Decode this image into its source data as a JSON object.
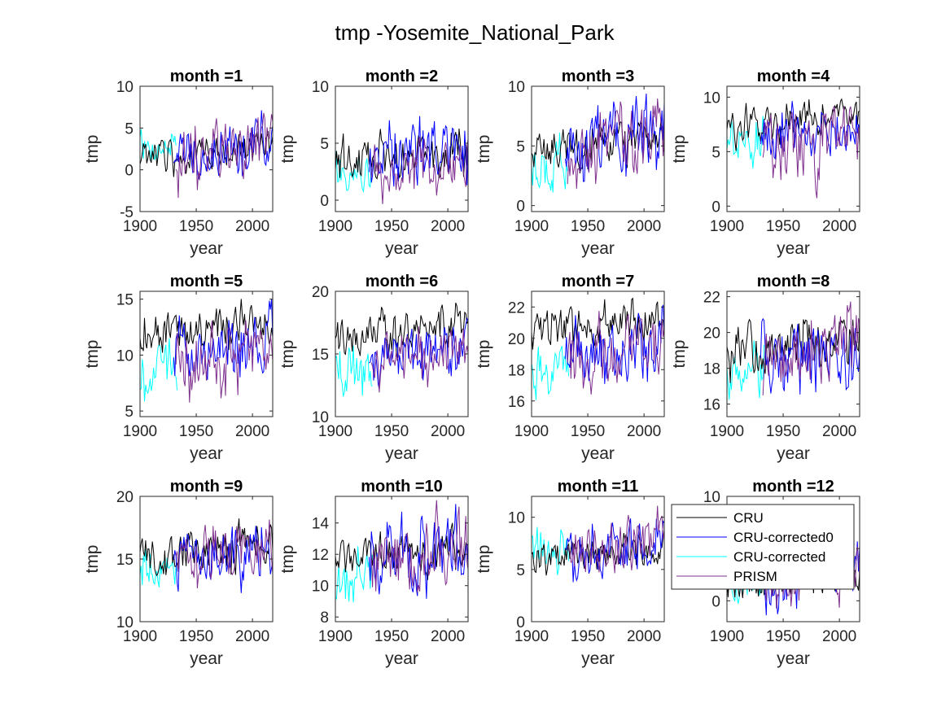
{
  "figure": {
    "title": "tmp -Yosemite_National_Park"
  },
  "legend": {
    "placement": "over subplot month =12, upper-left",
    "entries": [
      {
        "name": "CRU",
        "color": "#000000"
      },
      {
        "name": "CRU-corrected0",
        "color": "#0000ff"
      },
      {
        "name": "CRU-corrected",
        "color": "#00ffff"
      },
      {
        "name": "PRISM",
        "color": "#7e2f8e"
      }
    ]
  },
  "chart_data": [
    {
      "type": "line",
      "title": "month =1",
      "xlabel": "year",
      "ylabel": "tmp",
      "xlim": [
        1900,
        2018
      ],
      "ylim": [
        -5,
        10
      ],
      "xticks": [
        1900,
        1950,
        2000
      ],
      "yticks": [
        -5,
        0,
        5,
        10
      ],
      "approx_series_ranges": {
        "CRU": [
          -1.5,
          5.5
        ],
        "CRU-corrected0": [
          -3,
          8
        ],
        "CRU-corrected": [
          0,
          6
        ],
        "PRISM": [
          -4.5,
          8.5
        ]
      }
    },
    {
      "type": "line",
      "title": "month =2",
      "xlabel": "year",
      "ylabel": "tmp",
      "xlim": [
        1900,
        2018
      ],
      "ylim": [
        -1,
        10
      ],
      "xticks": [
        1900,
        1950,
        2000
      ],
      "yticks": [
        0,
        5,
        10
      ],
      "approx_series_ranges": {
        "CRU": [
          0.5,
          7
        ],
        "CRU-corrected0": [
          -1,
          8.5
        ],
        "CRU-corrected": [
          -0.5,
          6
        ],
        "PRISM": [
          -1,
          7
        ]
      }
    },
    {
      "type": "line",
      "title": "month =3",
      "xlabel": "year",
      "ylabel": "tmp",
      "xlim": [
        1900,
        2018
      ],
      "ylim": [
        -0.5,
        10
      ],
      "xticks": [
        1900,
        1950,
        2000
      ],
      "yticks": [
        0,
        5,
        10
      ],
      "approx_series_ranges": {
        "CRU": [
          2.5,
          8
        ],
        "CRU-corrected0": [
          0.5,
          9.5
        ],
        "CRU-corrected": [
          0,
          7.5
        ],
        "PRISM": [
          0.5,
          9.5
        ]
      }
    },
    {
      "type": "line",
      "title": "month =4",
      "xlabel": "year",
      "ylabel": "tmp",
      "xlim": [
        1900,
        2018
      ],
      "ylim": [
        -0.5,
        11
      ],
      "xticks": [
        1900,
        1950,
        2000
      ],
      "yticks": [
        0,
        5,
        10
      ],
      "approx_series_ranges": {
        "CRU": [
          5,
          10.5
        ],
        "CRU-corrected0": [
          2.5,
          10.5
        ],
        "CRU-corrected": [
          3,
          9.5
        ],
        "PRISM": [
          0,
          11
        ]
      }
    },
    {
      "type": "line",
      "title": "month =5",
      "xlabel": "year",
      "ylabel": "tmp",
      "xlim": [
        1900,
        2018
      ],
      "ylim": [
        4.5,
        15.7
      ],
      "xticks": [
        1900,
        1950,
        2000
      ],
      "yticks": [
        5,
        10,
        15
      ],
      "approx_series_ranges": {
        "CRU": [
          9,
          15.5
        ],
        "CRU-corrected0": [
          6,
          15
        ],
        "CRU-corrected": [
          5,
          13
        ],
        "PRISM": [
          4.5,
          15.5
        ]
      }
    },
    {
      "type": "line",
      "title": "month =6",
      "xlabel": "year",
      "ylabel": "tmp",
      "xlim": [
        1900,
        2018
      ],
      "ylim": [
        10,
        20
      ],
      "xticks": [
        1900,
        1950,
        2000
      ],
      "yticks": [
        10,
        15,
        20
      ],
      "approx_series_ranges": {
        "CRU": [
          14,
          19.5
        ],
        "CRU-corrected0": [
          11,
          18.5
        ],
        "CRU-corrected": [
          10.5,
          17
        ],
        "PRISM": [
          11,
          18.5
        ]
      }
    },
    {
      "type": "line",
      "title": "month =7",
      "xlabel": "year",
      "ylabel": "tmp",
      "xlim": [
        1900,
        2018
      ],
      "ylim": [
        15,
        23
      ],
      "xticks": [
        1900,
        1950,
        2000
      ],
      "yticks": [
        16,
        18,
        20,
        22
      ],
      "approx_series_ranges": {
        "CRU": [
          18.5,
          23
        ],
        "CRU-corrected0": [
          15.5,
          22.5
        ],
        "CRU-corrected": [
          16,
          20.5
        ],
        "PRISM": [
          15,
          22.5
        ]
      }
    },
    {
      "type": "line",
      "title": "month =8",
      "xlabel": "year",
      "ylabel": "tmp",
      "xlim": [
        1900,
        2018
      ],
      "ylim": [
        15.3,
        22.3
      ],
      "xticks": [
        1900,
        1950,
        2000
      ],
      "yticks": [
        16,
        18,
        20,
        22
      ],
      "approx_series_ranges": {
        "CRU": [
          17,
          22
        ],
        "CRU-corrected0": [
          15.5,
          22
        ],
        "CRU-corrected": [
          16.2,
          20.5
        ],
        "PRISM": [
          15.5,
          22.3
        ]
      }
    },
    {
      "type": "line",
      "title": "month =9",
      "xlabel": "year",
      "ylabel": "tmp",
      "xlim": [
        1900,
        2018
      ],
      "ylim": [
        10,
        20
      ],
      "xticks": [
        1900,
        1950,
        2000
      ],
      "yticks": [
        10,
        15,
        20
      ],
      "approx_series_ranges": {
        "CRU": [
          13,
          18.5
        ],
        "CRU-corrected0": [
          11,
          19
        ],
        "CRU-corrected": [
          11.5,
          18
        ],
        "PRISM": [
          11,
          19.5
        ]
      }
    },
    {
      "type": "line",
      "title": "month =10",
      "xlabel": "year",
      "ylabel": "tmp",
      "xlim": [
        1900,
        2018
      ],
      "ylim": [
        7.7,
        15.7
      ],
      "xticks": [
        1900,
        1950,
        2000
      ],
      "yticks": [
        8,
        10,
        12,
        14
      ],
      "approx_series_ranges": {
        "CRU": [
          10,
          14
        ],
        "CRU-corrected0": [
          8,
          15.5
        ],
        "CRU-corrected": [
          7.8,
          14
        ],
        "PRISM": [
          7.8,
          15.7
        ]
      }
    },
    {
      "type": "line",
      "title": "month =11",
      "xlabel": "year",
      "ylabel": "tmp",
      "xlim": [
        1900,
        2018
      ],
      "ylim": [
        0,
        12
      ],
      "xticks": [
        1900,
        1950,
        2000
      ],
      "yticks": [
        0,
        5,
        10
      ],
      "approx_series_ranges": {
        "CRU": [
          4,
          9
        ],
        "CRU-corrected0": [
          2.5,
          11
        ],
        "CRU-corrected": [
          4,
          10.5
        ],
        "PRISM": [
          2.5,
          11.5
        ]
      }
    },
    {
      "type": "line",
      "title": "month =12",
      "xlabel": "year",
      "ylabel": "tmp",
      "xlim": [
        1900,
        2018
      ],
      "ylim": [
        -2,
        10
      ],
      "xticks": [
        1900,
        1950,
        2000
      ],
      "yticks": [
        0,
        5,
        10
      ],
      "approx_series_ranges": {
        "CRU": [
          -1.5,
          6
        ],
        "CRU-corrected0": [
          -2,
          7
        ],
        "CRU-corrected": [
          -1,
          6
        ],
        "PRISM": [
          -2,
          7
        ]
      }
    }
  ]
}
